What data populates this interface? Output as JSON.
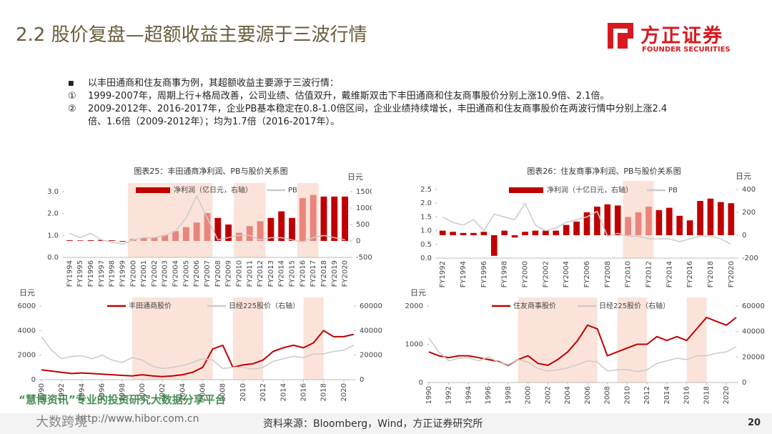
{
  "header": {
    "title": "2.2 股价复盘—超额收益主要源于三波行情",
    "logo": "方正证券",
    "logo_en": "FOUNDER SECURITIES"
  },
  "bullets": {
    "intro": "以丰田通商和住友商事为例，其超额收益主要源于三波行情：",
    "items": [
      {
        "mark": "①",
        "text": "1999-2007年，周期上行+格局改善，公司业绩、估值双升，戴维斯双击下丰田通商和住友商事股价分别上涨10.9倍、2.1倍。"
      },
      {
        "mark": "②",
        "text": "2009-2012年、2016-2017年，企业PB基本稳定在0.8-1.0倍区间，企业业绩持续增长，丰田通商和住友商事股价在两波行情中分别上涨2.4倍、1.6倍（2009-2012年）；均为1.7倍（2016-2017年）。"
      }
    ]
  },
  "chart_data": [
    {
      "type": "combo",
      "title": "图表25：丰田通商净利润、PB与股价关系图",
      "y2_label": "日元",
      "categories": [
        "FY1994",
        "FY1995",
        "FY1996",
        "FY1997",
        "FY1998",
        "FY1999",
        "FY2000",
        "FY2001",
        "FY2002",
        "FY2003",
        "FY2004",
        "FY2005",
        "FY2006",
        "FY2007",
        "FY2008",
        "FY2009",
        "FY2010",
        "FY2011",
        "FY2012",
        "FY2013",
        "FY2014",
        "FY2015",
        "FY2016",
        "FY2017",
        "FY2018",
        "FY2019",
        "FY2020"
      ],
      "highlights": [
        [
          "FY2000",
          "FY2007"
        ],
        [
          "FY2010",
          "FY2012"
        ],
        [
          "FY2016",
          "FY2017"
        ]
      ],
      "highlight_color": "#fbe3da",
      "series": [
        {
          "name": "净利润（亿日元，右轴）",
          "type": "bar",
          "axis": "y2",
          "color": "#c00000",
          "highlight_color": "#e9857c",
          "values": [
            20,
            15,
            20,
            30,
            20,
            -20,
            60,
            90,
            110,
            180,
            300,
            420,
            560,
            850,
            700,
            500,
            250,
            450,
            600,
            700,
            900,
            700,
            1300,
            1400,
            1350,
            1350,
            1350
          ]
        },
        {
          "name": "PB",
          "type": "line",
          "color": "#cccccc",
          "values": [
            1.1,
            0.9,
            1.1,
            0.8,
            0.7,
            0.6,
            0.8,
            0.9,
            0.9,
            1.0,
            1.2,
            1.8,
            2.8,
            1.8,
            0.8,
            0.9,
            1.0,
            1.0,
            0.8,
            0.9,
            0.9,
            0.8,
            0.7,
            0.9,
            1.0,
            0.9,
            0.8
          ]
        }
      ],
      "ylim": [
        0,
        3
      ],
      "yticks": [
        {
          "value": 0,
          "label": "0.0"
        },
        {
          "value": 1,
          "label": "1.0"
        },
        {
          "value": 2,
          "label": "2.0"
        },
        {
          "value": 3,
          "label": "3.0"
        }
      ],
      "y2lim": [
        -500,
        1500
      ],
      "y2ticks": [
        -500,
        0,
        500,
        1000,
        1500
      ]
    },
    {
      "type": "combo",
      "title": "图表26：住友商事净利润、PB与股价关系图",
      "y2_label": "日元",
      "categories": [
        "FY1992",
        null,
        "FY1994",
        null,
        "FY1996",
        null,
        "FY1998",
        null,
        "FY2000",
        null,
        "FY2002",
        null,
        "FY2004",
        null,
        "FY2006",
        null,
        "FY2008",
        null,
        "FY2010",
        null,
        "FY2012",
        null,
        "FY2014",
        null,
        "FY2016",
        null,
        "FY2018",
        null,
        "FY2020"
      ],
      "highlights": [
        [
          "FY2000",
          "FY2007"
        ],
        [
          "FY2010",
          "FY2012"
        ],
        [
          "FY2016",
          "FY2017"
        ]
      ],
      "highlight_color": "#fbe3da",
      "series": [
        {
          "name": "净利润（十亿日元，右轴）",
          "type": "bar",
          "axis": "y2",
          "color": "#c00000",
          "highlight_color": "#e9857c",
          "values": [
            40,
            30,
            20,
            20,
            30,
            -180,
            40,
            -20,
            30,
            40,
            40,
            40,
            90,
            120,
            200,
            250,
            270,
            260,
            160,
            200,
            250,
            220,
            240,
            170,
            130,
            300,
            320,
            290,
            280
          ]
        },
        {
          "name": "PB",
          "type": "line",
          "color": "#cccccc",
          "values": [
            1.5,
            1.3,
            1.2,
            1.4,
            1.0,
            1.6,
            1.5,
            1.4,
            2.0,
            1.2,
            1.0,
            1.1,
            1.3,
            1.4,
            1.5,
            1.7,
            0.8,
            0.9,
            0.8,
            0.8,
            0.7,
            0.7,
            0.7,
            0.6,
            0.7,
            0.8,
            0.8,
            0.7,
            0.5
          ]
        }
      ],
      "ylim": [
        0,
        2.5
      ],
      "yticks": [
        {
          "value": 0,
          "label": "0.0"
        },
        {
          "value": 0.5,
          "label": "0.5"
        },
        {
          "value": 1,
          "label": "1.0"
        },
        {
          "value": 1.5,
          "label": "1.5"
        },
        {
          "value": 2,
          "label": "2.0"
        },
        {
          "value": 2.5,
          "label": "2.5"
        }
      ],
      "y2lim": [
        -200,
        400
      ],
      "y2ticks": [
        -200,
        0,
        200,
        400
      ]
    },
    {
      "type": "line",
      "y_label": "日元",
      "x": [
        1990,
        1991,
        1992,
        1993,
        1994,
        1995,
        1996,
        1997,
        1998,
        1999,
        2000,
        2001,
        2002,
        2003,
        2004,
        2005,
        2006,
        2007,
        2008,
        2009,
        2010,
        2011,
        2012,
        2013,
        2014,
        2015,
        2016,
        2017,
        2018,
        2019,
        2020,
        2021
      ],
      "xlim": [
        1990,
        2021
      ],
      "xticks": [
        1990,
        1992,
        1994,
        1996,
        1998,
        2000,
        2002,
        2004,
        2006,
        2008,
        2010,
        2012,
        2014,
        2016,
        2018,
        2020
      ],
      "highlights": [
        [
          1999,
          2007
        ],
        [
          2009,
          2012
        ],
        [
          2016,
          2018
        ]
      ],
      "highlight_color": "#fbe3da",
      "series": [
        {
          "name": "丰田通商股价",
          "color": "#c00000",
          "values": [
            800,
            700,
            600,
            500,
            550,
            500,
            450,
            400,
            350,
            300,
            400,
            300,
            250,
            300,
            400,
            600,
            1000,
            2500,
            2800,
            1000,
            1200,
            1300,
            1600,
            2300,
            2600,
            2800,
            2600,
            3000,
            4000,
            3500,
            3500,
            3700
          ]
        },
        {
          "name": "日经225股价（右轴）",
          "axis": "y2",
          "color": "#cccccc",
          "values": [
            35000,
            24000,
            17000,
            19000,
            19500,
            17000,
            20000,
            16000,
            14000,
            18000,
            16000,
            11000,
            9000,
            10000,
            11500,
            14000,
            17000,
            16000,
            9000,
            10000,
            10200,
            8500,
            10000,
            15000,
            17000,
            19000,
            18000,
            21000,
            21000,
            23000,
            24000,
            28000
          ]
        }
      ],
      "ylim": [
        0,
        6000
      ],
      "yticks": [
        0,
        2000,
        4000,
        6000
      ],
      "y2lim": [
        0,
        60000
      ],
      "y2ticks": [
        0,
        20000,
        40000,
        60000
      ]
    },
    {
      "type": "line",
      "y_label": "日元",
      "x": [
        1990,
        1991,
        1992,
        1993,
        1994,
        1995,
        1996,
        1997,
        1998,
        1999,
        2000,
        2001,
        2002,
        2003,
        2004,
        2005,
        2006,
        2007,
        2008,
        2009,
        2010,
        2011,
        2012,
        2013,
        2014,
        2015,
        2016,
        2017,
        2018,
        2019,
        2020,
        2021
      ],
      "xlim": [
        1990,
        2021
      ],
      "xticks": [
        1990,
        1992,
        1994,
        1996,
        1998,
        2000,
        2002,
        2004,
        2006,
        2008,
        2010,
        2012,
        2014,
        2016,
        2018,
        2020
      ],
      "highlights": [
        [
          1999,
          2007
        ],
        [
          2009,
          2012
        ],
        [
          2016,
          2018
        ]
      ],
      "highlight_color": "#fbe3da",
      "series": [
        {
          "name": "住友商事股价",
          "color": "#c00000",
          "values": [
            800,
            700,
            650,
            700,
            700,
            650,
            600,
            550,
            450,
            600,
            700,
            500,
            450,
            600,
            800,
            1100,
            1500,
            1400,
            700,
            800,
            900,
            1000,
            1000,
            1200,
            1100,
            1200,
            1100,
            1400,
            1700,
            1600,
            1500,
            1700
          ]
        },
        {
          "name": "日经225股价（右轴）",
          "axis": "y2",
          "color": "#cccccc",
          "values": [
            35000,
            24000,
            17000,
            19000,
            19500,
            17000,
            20000,
            16000,
            14000,
            18000,
            16000,
            11000,
            9000,
            10000,
            11500,
            14000,
            17000,
            16000,
            9000,
            10000,
            10200,
            8500,
            10000,
            15000,
            17000,
            19000,
            18000,
            21000,
            21000,
            23000,
            24000,
            28000
          ]
        }
      ],
      "ylim": [
        0,
        2000
      ],
      "yticks": [
        0,
        1000,
        2000
      ],
      "y2lim": [
        0,
        60000
      ],
      "y2ticks": [
        0,
        20000,
        40000,
        60000
      ]
    }
  ],
  "footer": {
    "source": "资料来源：Bloomberg，Wind，方正证券研究所",
    "page": "20"
  },
  "watermark": {
    "slogan": "“慧博资讯”专业的投资研究大数据分享平台",
    "url": "http://www.hibor.com.cn",
    "brand": "大数跨境"
  }
}
